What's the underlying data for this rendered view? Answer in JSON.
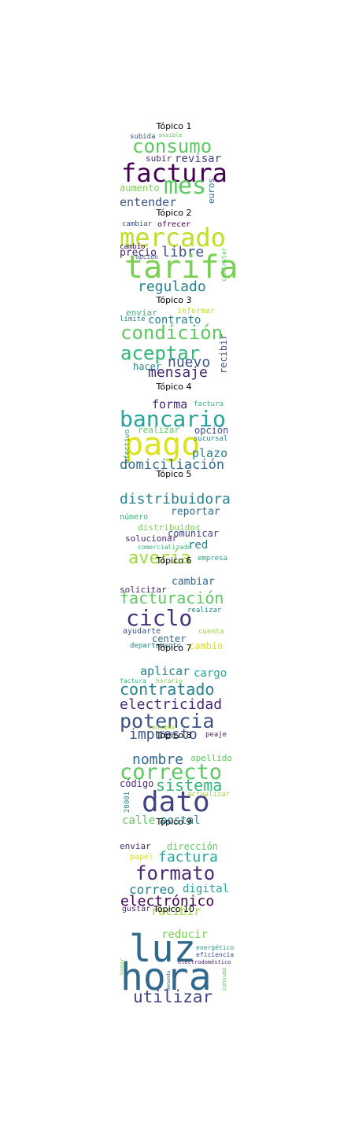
{
  "topics": [
    {
      "title": "Tópico 1",
      "words": [
        {
          "text": "subida",
          "color": "#3b528b"
        },
        {
          "text": "posible",
          "color": "#5ec962"
        },
        {
          "text": "consumo",
          "color": "#5ec962"
        },
        {
          "text": "subir",
          "color": "#482878"
        },
        {
          "text": "revisar",
          "color": "#414487"
        },
        {
          "text": "factura",
          "color": "#440154"
        },
        {
          "text": "aumento",
          "color": "#7ad151"
        },
        {
          "text": "mes",
          "color": "#5ec962"
        },
        {
          "text": "euros",
          "color": "#31688e"
        },
        {
          "text": "entender",
          "color": "#3b528b"
        }
      ]
    },
    {
      "title": "Tópico 2",
      "words": [
        {
          "text": "cambiar",
          "color": "#3b528b"
        },
        {
          "text": "ofrecer",
          "color": "#440154"
        },
        {
          "text": "mercado",
          "color": "#bddf26"
        },
        {
          "text": "cambio",
          "color": "#440154"
        },
        {
          "text": "precio",
          "color": "#482878"
        },
        {
          "text": "libre",
          "color": "#3b528b"
        },
        {
          "text": "opción",
          "color": "#3b528b"
        },
        {
          "text": "tarifa",
          "color": "#7ad151"
        },
        {
          "text": "contratar",
          "color": "#5ec962"
        },
        {
          "text": "regulado",
          "color": "#26828e"
        }
      ]
    },
    {
      "title": "Tópico 3",
      "words": [
        {
          "text": "enviar",
          "color": "#35b779"
        },
        {
          "text": "informar",
          "color": "#bddf26"
        },
        {
          "text": "límite",
          "color": "#26828e"
        },
        {
          "text": "contrato",
          "color": "#26828e"
        },
        {
          "text": "condición",
          "color": "#5ec962"
        },
        {
          "text": "aceptar",
          "color": "#35b779"
        },
        {
          "text": "nuevo",
          "color": "#3b528b"
        },
        {
          "text": "recibir",
          "color": "#3b528b"
        },
        {
          "text": "hacer",
          "color": "#26828e"
        },
        {
          "text": "mensaje",
          "color": "#482878"
        }
      ]
    },
    {
      "title": "Tópico 4",
      "words": [
        {
          "text": "forma",
          "color": "#482878"
        },
        {
          "text": "factura",
          "color": "#35b779"
        },
        {
          "text": "bancario",
          "color": "#26a69a"
        },
        {
          "text": "realizar",
          "color": "#5ec962"
        },
        {
          "text": "opción",
          "color": "#3b528b"
        },
        {
          "text": "pago",
          "color": "#dce319"
        },
        {
          "text": "sucursal",
          "color": "#26828e"
        },
        {
          "text": "efectivo",
          "color": "#1f9e89"
        },
        {
          "text": "plazo",
          "color": "#26828e"
        },
        {
          "text": "domiciliación",
          "color": "#31688e"
        }
      ]
    },
    {
      "title": "Tópico 5",
      "words": [
        {
          "text": "distribuidora",
          "color": "#26828e"
        },
        {
          "text": "reportar",
          "color": "#31688e"
        },
        {
          "text": "número",
          "color": "#35b779"
        },
        {
          "text": "distribuidor",
          "color": "#7ad151"
        },
        {
          "text": "comunicar",
          "color": "#414487"
        },
        {
          "text": "solucionar",
          "color": "#482878"
        },
        {
          "text": "red",
          "color": "#26828e"
        },
        {
          "text": "comercializado",
          "color": "#35b779"
        },
        {
          "text": "avería",
          "color": "#a0da39"
        },
        {
          "text": "empresa",
          "color": "#1f9e89"
        }
      ]
    },
    {
      "title": "Tópico 6",
      "words": [
        {
          "text": "cambiar",
          "color": "#31688e"
        },
        {
          "text": "solicitar",
          "color": "#482878"
        },
        {
          "text": "facturación",
          "color": "#5ec962"
        },
        {
          "text": "ciclo",
          "color": "#46327e"
        },
        {
          "text": "realizar",
          "color": "#26828e"
        },
        {
          "text": "ayudarte",
          "color": "#3b528b"
        },
        {
          "text": "cuenta",
          "color": "#a0da39"
        },
        {
          "text": "center",
          "color": "#31688e"
        },
        {
          "text": "departamento",
          "color": "#26828e"
        },
        {
          "text": "cambio",
          "color": "#dce319"
        }
      ]
    },
    {
      "title": "Tópico 7",
      "words": [
        {
          "text": "aplicar",
          "color": "#26828e"
        },
        {
          "text": "cargo",
          "color": "#26a69a"
        },
        {
          "text": "factura",
          "color": "#35b779"
        },
        {
          "text": "horario",
          "color": "#7ad151"
        },
        {
          "text": "contratado",
          "color": "#26828e"
        },
        {
          "text": "electricidad",
          "color": "#482878"
        },
        {
          "text": "potencia",
          "color": "#3b528b"
        },
        {
          "text": "consumo",
          "color": "#a0da39"
        },
        {
          "text": "impuesto",
          "color": "#3b528b"
        },
        {
          "text": "peaje",
          "color": "#482878"
        }
      ]
    },
    {
      "title": "Tópico 8",
      "words": [
        {
          "text": "nombre",
          "color": "#31688e"
        },
        {
          "text": "apellido",
          "color": "#5ec962"
        },
        {
          "text": "correcto",
          "color": "#5ec962"
        },
        {
          "text": "sistema",
          "color": "#35b779"
        },
        {
          "text": "código",
          "color": "#482878"
        },
        {
          "text": "dato",
          "color": "#414487"
        },
        {
          "text": "actualizar",
          "color": "#a0da39"
        },
        {
          "text": "28001",
          "color": "#26828e"
        },
        {
          "text": "calle",
          "color": "#5ec962"
        },
        {
          "text": "postal",
          "color": "#26828e"
        }
      ]
    },
    {
      "title": "Tópico 9",
      "words": [
        {
          "text": "enviar",
          "color": "#482878"
        },
        {
          "text": "dirección",
          "color": "#5ec962"
        },
        {
          "text": "papel",
          "color": "#dce319"
        },
        {
          "text": "factura",
          "color": "#26a69a"
        },
        {
          "text": "formato",
          "color": "#482878"
        },
        {
          "text": "correo",
          "color": "#26828e"
        },
        {
          "text": "digital",
          "color": "#26a69a"
        },
        {
          "text": "electrónico",
          "color": "#440154"
        },
        {
          "text": "gustar",
          "color": "#482878"
        },
        {
          "text": "recibir",
          "color": "#a0da39"
        }
      ]
    },
    {
      "title": "Tópico 10",
      "words": [
        {
          "text": "reducir",
          "color": "#7ad151"
        },
        {
          "text": "luz",
          "color": "#31688e"
        },
        {
          "text": "energético",
          "color": "#1f9e89"
        },
        {
          "text": "eficiencia",
          "color": "#3b528b"
        },
        {
          "text": "electrodoméstico",
          "color": "#482878"
        },
        {
          "text": "hogar",
          "color": "#7ad151"
        },
        {
          "text": "hora",
          "color": "#31688e"
        },
        {
          "text": "demanda",
          "color": "#31688e"
        },
        {
          "text": "consumo",
          "color": "#5ec962"
        },
        {
          "text": "utilizar",
          "color": "#414487"
        }
      ]
    }
  ]
}
